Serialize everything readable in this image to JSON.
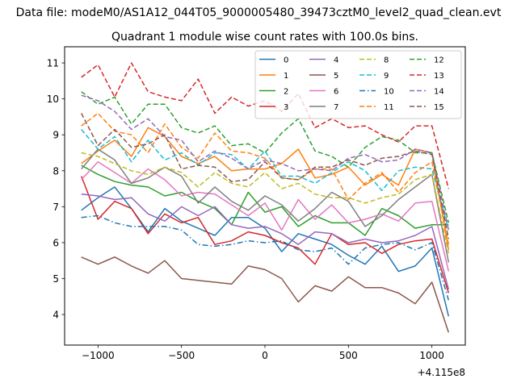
{
  "suptitle": "Data file: modeM0/AS1A12_044T05_9000005480_39473cztM0_level2_quad_clean.evt",
  "chart_data": {
    "type": "line",
    "title": "Quadrant 1 module wise count rates with 100.0s bins.",
    "xlabel": "",
    "ylabel": "",
    "x_offset_label": "+4.115e8",
    "xlim": [
      -1200,
      1200
    ],
    "ylim": [
      3.15,
      11.45
    ],
    "x_ticks": [
      -1000,
      -500,
      0,
      500,
      1000
    ],
    "x_tick_labels": [
      "−1000",
      "−500",
      "0",
      "500",
      "1000"
    ],
    "y_ticks": [
      4,
      5,
      6,
      7,
      8,
      9,
      10,
      11
    ],
    "y_tick_labels": [
      "4",
      "5",
      "6",
      "7",
      "8",
      "9",
      "10",
      "11"
    ],
    "grid": false,
    "legend_location": "top-right",
    "legend_columns": 4,
    "x": [
      -1100,
      -1000,
      -900,
      -800,
      -700,
      -600,
      -500,
      -400,
      -300,
      -200,
      -100,
      0,
      100,
      200,
      300,
      400,
      500,
      600,
      700,
      800,
      900,
      1000,
      1100
    ],
    "series": [
      {
        "name": "0",
        "color": "#1f77b4",
        "dash": "solid",
        "values": [
          6.9,
          7.25,
          7.55,
          6.95,
          6.3,
          6.95,
          6.6,
          6.4,
          6.2,
          6.7,
          6.7,
          6.4,
          5.75,
          6.25,
          6.1,
          5.95,
          5.65,
          5.4,
          5.9,
          5.2,
          5.35,
          5.85,
          3.95
        ]
      },
      {
        "name": "1",
        "color": "#ff7f0e",
        "dash": "solid",
        "values": [
          8.2,
          8.55,
          8.85,
          8.4,
          9.2,
          8.95,
          8.4,
          8.2,
          8.4,
          8.0,
          8.05,
          8.05,
          8.2,
          8.6,
          7.8,
          7.9,
          8.1,
          7.6,
          7.9,
          7.6,
          8.6,
          8.5,
          5.8
        ]
      },
      {
        "name": "2",
        "color": "#2ca02c",
        "dash": "solid",
        "values": [
          8.15,
          7.9,
          7.7,
          7.6,
          7.55,
          7.3,
          7.4,
          7.15,
          6.95,
          6.5,
          7.4,
          6.85,
          7.0,
          6.45,
          6.75,
          6.55,
          6.55,
          6.2,
          6.95,
          6.75,
          6.4,
          6.5,
          6.5
        ]
      },
      {
        "name": "3",
        "color": "#d62728",
        "dash": "solid",
        "values": [
          7.85,
          6.65,
          7.15,
          6.95,
          6.25,
          6.8,
          6.55,
          6.7,
          5.95,
          6.05,
          6.3,
          6.2,
          6.0,
          5.85,
          5.4,
          6.25,
          5.95,
          6.0,
          5.7,
          5.95,
          6.05,
          6.1,
          4.6
        ]
      },
      {
        "name": "4",
        "color": "#9467bd",
        "dash": "solid",
        "values": [
          7.35,
          7.3,
          7.2,
          7.25,
          6.8,
          6.6,
          7.0,
          6.75,
          7.0,
          6.5,
          6.4,
          6.45,
          6.25,
          5.95,
          6.3,
          6.25,
          6.0,
          6.1,
          6.0,
          6.05,
          6.2,
          6.45,
          4.7
        ]
      },
      {
        "name": "5",
        "color": "#8c564b",
        "dash": "solid",
        "values": [
          5.6,
          5.4,
          5.6,
          5.35,
          5.15,
          5.5,
          5.0,
          4.95,
          4.9,
          4.85,
          5.35,
          5.25,
          5.0,
          4.35,
          4.8,
          4.65,
          5.05,
          4.75,
          4.75,
          4.6,
          4.3,
          4.9,
          3.5
        ]
      },
      {
        "name": "6",
        "color": "#e377c2",
        "dash": "solid",
        "values": [
          7.75,
          8.25,
          7.95,
          7.65,
          8.05,
          7.75,
          7.3,
          7.4,
          7.35,
          7.05,
          6.75,
          7.1,
          6.35,
          7.2,
          6.65,
          7.05,
          6.55,
          6.65,
          6.8,
          6.6,
          7.1,
          7.15,
          5.2
        ]
      },
      {
        "name": "7",
        "color": "#7f7f7f",
        "dash": "solid",
        "values": [
          8.05,
          8.6,
          8.3,
          7.65,
          7.8,
          8.1,
          7.85,
          7.1,
          7.55,
          7.15,
          6.9,
          7.3,
          7.05,
          6.6,
          6.95,
          7.4,
          7.15,
          6.45,
          6.75,
          7.2,
          7.55,
          7.9,
          5.45
        ]
      },
      {
        "name": "8",
        "color": "#bcbd22",
        "dash": "dashed",
        "values": [
          8.5,
          8.4,
          8.2,
          8.0,
          7.9,
          8.1,
          7.95,
          7.55,
          7.95,
          7.65,
          7.55,
          7.95,
          7.5,
          7.65,
          7.35,
          7.25,
          7.25,
          7.1,
          7.25,
          7.35,
          7.75,
          7.9,
          5.7
        ]
      },
      {
        "name": "9",
        "color": "#17becf",
        "dash": "dashed",
        "values": [
          9.15,
          8.6,
          8.95,
          8.25,
          8.85,
          8.3,
          8.5,
          8.15,
          8.5,
          8.45,
          8.05,
          8.55,
          7.85,
          7.85,
          7.65,
          7.95,
          8.25,
          8.0,
          7.45,
          8.0,
          8.1,
          8.05,
          6.35
        ]
      },
      {
        "name": "10",
        "color": "#1f77b4",
        "dash": "dashdot",
        "values": [
          6.7,
          6.75,
          6.55,
          6.45,
          6.45,
          6.45,
          6.35,
          5.95,
          5.9,
          5.95,
          6.05,
          6.0,
          6.05,
          5.8,
          5.75,
          5.85,
          5.4,
          5.85,
          5.95,
          6.0,
          5.8,
          6.0,
          4.4
        ]
      },
      {
        "name": "11",
        "color": "#ff7f0e",
        "dash": "dashed",
        "values": [
          9.25,
          9.6,
          9.1,
          9.0,
          8.5,
          9.3,
          8.65,
          8.35,
          9.05,
          8.55,
          8.5,
          8.35,
          7.8,
          7.75,
          8.05,
          8.05,
          7.2,
          7.65,
          7.95,
          7.4,
          7.95,
          8.25,
          5.95
        ]
      },
      {
        "name": "12",
        "color": "#2ca02c",
        "dash": "dashed",
        "values": [
          10.2,
          9.85,
          10.05,
          9.3,
          9.85,
          9.85,
          9.2,
          9.05,
          9.25,
          8.7,
          8.75,
          8.5,
          9.05,
          9.45,
          8.55,
          8.4,
          8.1,
          8.65,
          8.95,
          8.85,
          8.5,
          8.5,
          6.55
        ]
      },
      {
        "name": "13",
        "color": "#d62728",
        "dash": "dashed",
        "values": [
          10.6,
          10.95,
          10.05,
          11.0,
          10.2,
          10.05,
          9.95,
          10.55,
          9.6,
          10.05,
          9.8,
          9.95,
          9.65,
          10.15,
          9.2,
          9.45,
          9.2,
          9.25,
          9.0,
          8.8,
          9.25,
          9.25,
          7.5
        ]
      },
      {
        "name": "14",
        "color": "#9467bd",
        "dash": "dashed",
        "values": [
          10.1,
          9.95,
          9.65,
          9.15,
          9.45,
          8.95,
          8.85,
          8.25,
          8.55,
          8.35,
          8.05,
          8.3,
          8.2,
          8.0,
          8.05,
          8.0,
          8.35,
          8.45,
          8.25,
          8.3,
          8.6,
          8.5,
          6.35
        ]
      },
      {
        "name": "15",
        "color": "#8c564b",
        "dash": "dashed",
        "values": [
          9.6,
          8.7,
          9.15,
          8.65,
          8.75,
          9.0,
          8.05,
          8.15,
          8.1,
          7.7,
          7.75,
          8.25,
          7.8,
          7.75,
          8.1,
          8.1,
          8.3,
          8.15,
          8.35,
          8.4,
          8.55,
          8.45,
          6.1
        ]
      }
    ]
  }
}
